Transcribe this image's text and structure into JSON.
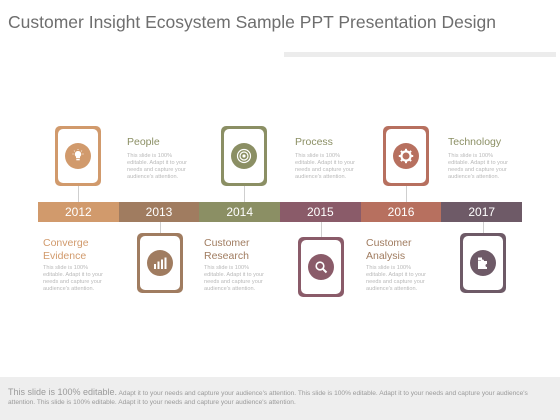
{
  "title": "Customer Insight Ecosystem Sample PPT Presentation Design",
  "colors": {
    "orange": "#d19a6c",
    "brown": "#a07c60",
    "olive": "#8b8f64",
    "plum": "#8a5b69",
    "rust": "#b7705f",
    "slate": "#6e5a67",
    "heading_top": "#8b8f64",
    "heading_bottom": "#d19a6c"
  },
  "years": [
    "2012",
    "2013",
    "2014",
    "2015",
    "2016",
    "2017"
  ],
  "top_items": [
    {
      "heading": "People",
      "icon": "lightbulb-icon",
      "body": "This slide is 100% editable. Adapt it to your needs and capture your audience's attention."
    },
    {
      "heading": "Process",
      "icon": "target-icon",
      "body": "This slide is 100% editable. Adapt it to your needs and capture your audience's attention."
    },
    {
      "heading": "Technology",
      "icon": "gear-icon",
      "body": "This slide is 100% editable. Adapt it to your needs and capture your audience's attention."
    }
  ],
  "bottom_items": [
    {
      "heading": "Converge Evidence",
      "heading_lines": [
        "Converge",
        "Evidence"
      ],
      "icon": "bar-chart-icon",
      "body": "This slide is 100% editable. Adapt it to your needs and capture your audience's attention."
    },
    {
      "heading": "Customer Research",
      "heading_lines": [
        "Customer",
        "Research"
      ],
      "icon": "magnifier-icon",
      "body": "This slide is 100% editable. Adapt it to your needs and capture your audience's attention."
    },
    {
      "heading": "Customer Analysis",
      "heading_lines": [
        "Customer",
        "Analysis"
      ],
      "icon": "puzzle-icon",
      "body": "This slide is 100% editable. Adapt it to your needs and capture your audience's attention."
    }
  ],
  "footer": {
    "lead": "This slide is 100% editable.",
    "rest": " Adapt it to your needs and capture your audience's attention. This slide is 100% editable. Adapt it to your needs and capture your audience's attention. This slide is 100% editable. Adapt it to your needs and capture your audience's attention."
  }
}
